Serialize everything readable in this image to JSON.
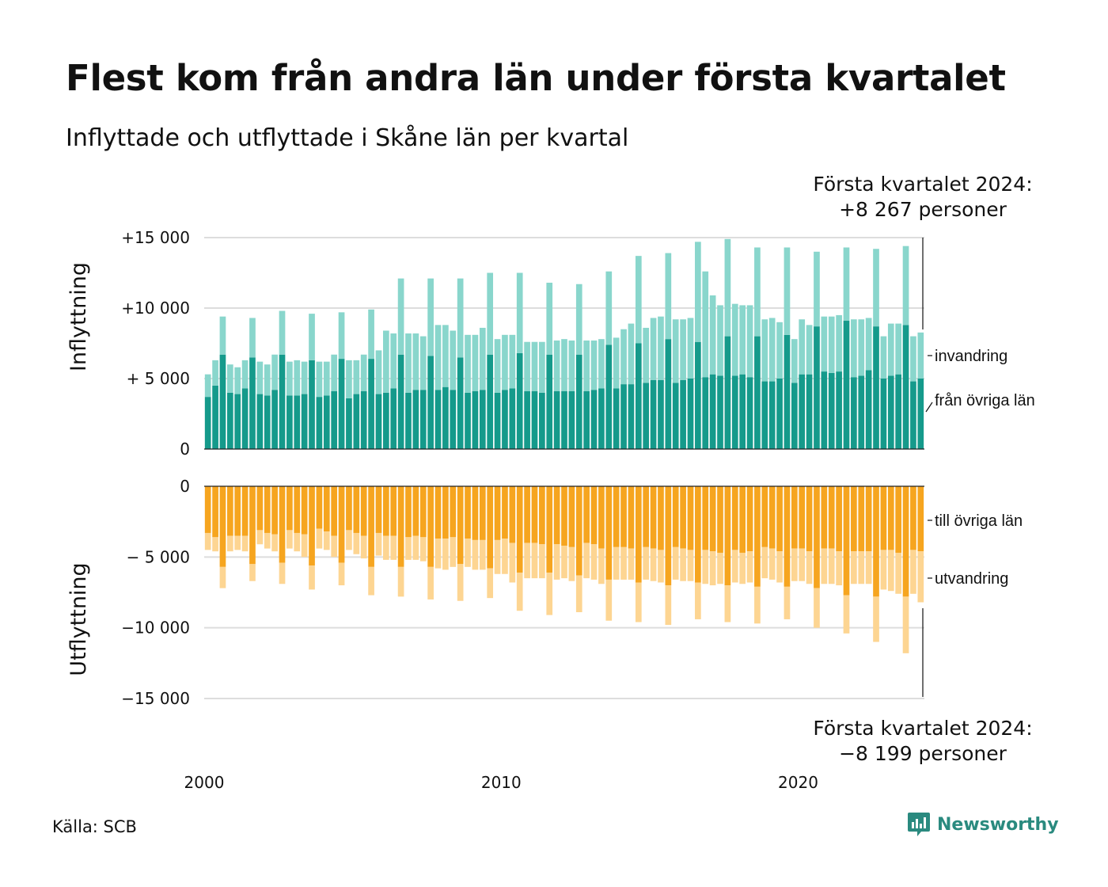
{
  "title": "Flest kom från andra län under första kvartalet",
  "subtitle": "Inflyttade och utflyttade i Skåne län per kvartal",
  "source": "Källa: SCB",
  "brand": "Newsworthy",
  "colors": {
    "fran_ovriga_lan": "#159a8b",
    "invandring": "#89d6cc",
    "till_ovriga_lan": "#f6a51f",
    "utvandring": "#fdd592",
    "gridline": "#dddddd",
    "brand": "#2a8a7f"
  },
  "chart_data": {
    "type": "bar",
    "stacked": true,
    "x_start": "2000 Q1",
    "x_end": "2024 Q1",
    "x_ticks": [
      "2000",
      "2010",
      "2020"
    ],
    "panels": [
      {
        "name": "Inflyttning",
        "ylabel": "Inflyttning",
        "ylim": [
          0,
          15000
        ],
        "yticks": [
          0,
          5000,
          10000,
          15000
        ],
        "ytick_labels": [
          "0",
          "+ 5 000",
          "+10 000",
          "+15 000"
        ],
        "series": [
          {
            "name": "från övriga län",
            "color": "#159a8b",
            "values": [
              3700,
              4500,
              6700,
              4000,
              3900,
              4300,
              6500,
              3900,
              3800,
              4200,
              6700,
              3800,
              3800,
              3900,
              6300,
              3700,
              3800,
              4100,
              6400,
              3600,
              3900,
              4100,
              6400,
              3900,
              4000,
              4300,
              6700,
              4000,
              4200,
              4200,
              6600,
              4200,
              4400,
              4200,
              6500,
              4000,
              4100,
              4200,
              6700,
              4000,
              4200,
              4300,
              6800,
              4100,
              4100,
              4000,
              6700,
              4100,
              4100,
              4100,
              6700,
              4100,
              4200,
              4300,
              7400,
              4300,
              4600,
              4600,
              7500,
              4700,
              4900,
              4900,
              7800,
              4700,
              4900,
              5000,
              7600,
              5100,
              5300,
              5200,
              8000,
              5200,
              5300,
              5100,
              8000,
              4800,
              4800,
              5000,
              8100,
              4700,
              5300,
              5300,
              8700,
              5500,
              5400,
              5500,
              9100,
              5100,
              5200,
              5600,
              8700,
              5000,
              5200,
              5300,
              8800,
              4800,
              5000
            ],
            "data_labels": []
          },
          {
            "name": "invandring",
            "color": "#89d6cc",
            "values": [
              1600,
              1800,
              2700,
              2000,
              1900,
              2000,
              2800,
              2300,
              2200,
              2500,
              3100,
              2400,
              2500,
              2300,
              3300,
              2500,
              2400,
              2600,
              3300,
              2700,
              2400,
              2600,
              3500,
              3100,
              4400,
              3900,
              5400,
              4200,
              4000,
              3800,
              5500,
              4600,
              4400,
              4200,
              5600,
              4100,
              4000,
              4400,
              5800,
              3800,
              3900,
              3800,
              5700,
              3500,
              3500,
              3600,
              5100,
              3600,
              3700,
              3600,
              5000,
              3600,
              3500,
              3500,
              5200,
              3600,
              3900,
              4300,
              6200,
              3900,
              4400,
              4500,
              6100,
              4500,
              4300,
              4300,
              7100,
              7500,
              5600,
              5000,
              6900,
              5100,
              4900,
              5100,
              6300,
              4400,
              4500,
              4000,
              6200,
              3100,
              3900,
              3500,
              5300,
              3900,
              4000,
              4000,
              5200,
              4100,
              4000,
              3700,
              5500,
              3000,
              3700,
              3600,
              5600,
              3200,
              3267
            ],
            "data_labels": []
          }
        ]
      },
      {
        "name": "Utflyttning",
        "ylabel": "Utflyttning",
        "ylim": [
          -15000,
          0
        ],
        "yticks": [
          0,
          -5000,
          -10000,
          -15000
        ],
        "ytick_labels": [
          "0",
          "− 5 000",
          "−10 000",
          "−15 000"
        ],
        "series": [
          {
            "name": "till övriga län",
            "color": "#f6a51f",
            "values": [
              -3300,
              -3600,
              -5700,
              -3500,
              -3500,
              -3500,
              -5500,
              -3100,
              -3300,
              -3400,
              -5400,
              -3100,
              -3300,
              -3400,
              -5600,
              -3000,
              -3200,
              -3500,
              -5400,
              -3100,
              -3300,
              -3500,
              -5700,
              -3300,
              -3500,
              -3500,
              -5700,
              -3600,
              -3500,
              -3600,
              -5700,
              -3700,
              -3700,
              -3600,
              -5500,
              -3700,
              -3800,
              -3800,
              -5800,
              -3800,
              -3700,
              -4000,
              -6100,
              -4000,
              -4000,
              -4100,
              -6100,
              -4100,
              -4200,
              -4300,
              -6300,
              -4000,
              -4100,
              -4400,
              -6600,
              -4300,
              -4300,
              -4400,
              -6800,
              -4300,
              -4400,
              -4500,
              -7000,
              -4300,
              -4400,
              -4500,
              -6800,
              -4500,
              -4600,
              -4700,
              -7000,
              -4500,
              -4700,
              -4600,
              -7100,
              -4300,
              -4400,
              -4600,
              -7100,
              -4400,
              -4400,
              -4600,
              -7200,
              -4400,
              -4400,
              -4600,
              -7700,
              -4600,
              -4600,
              -4600,
              -7800,
              -4500,
              -4500,
              -4700,
              -7800,
              -4500,
              -4600
            ],
            "data_labels": []
          },
          {
            "name": "utvandring",
            "color": "#fdd592",
            "values": [
              -1200,
              -1000,
              -1500,
              -1100,
              -1000,
              -1100,
              -1200,
              -1000,
              -1100,
              -1200,
              -1500,
              -1300,
              -1300,
              -1600,
              -1700,
              -1400,
              -1300,
              -1500,
              -1600,
              -1400,
              -1500,
              -1600,
              -2000,
              -1600,
              -1700,
              -1700,
              -2100,
              -1600,
              -1700,
              -1700,
              -2300,
              -2100,
              -2200,
              -2100,
              -2600,
              -2000,
              -2100,
              -2100,
              -2100,
              -2400,
              -2500,
              -2800,
              -2700,
              -2500,
              -2500,
              -2400,
              -3000,
              -2500,
              -2300,
              -2400,
              -2600,
              -2500,
              -2500,
              -2500,
              -2900,
              -2300,
              -2300,
              -2200,
              -2800,
              -2300,
              -2300,
              -2300,
              -2800,
              -2300,
              -2300,
              -2200,
              -2600,
              -2400,
              -2400,
              -2200,
              -2600,
              -2300,
              -2200,
              -2200,
              -2600,
              -2200,
              -2200,
              -2200,
              -2300,
              -2300,
              -2300,
              -2300,
              -2800,
              -2500,
              -2500,
              -2400,
              -2700,
              -2300,
              -2300,
              -2300,
              -3200,
              -2800,
              -2900,
              -2900,
              -4000,
              -3100,
              -3599
            ],
            "data_labels": []
          }
        ]
      }
    ],
    "legend_placement": "right",
    "annotations": [
      {
        "text_line1": "Första kvartalet 2024:",
        "text_line2": "+8 267 personer"
      },
      {
        "text_line1": "Första kvartalet 2024:",
        "text_line2": "−8 199 personer"
      }
    ]
  }
}
